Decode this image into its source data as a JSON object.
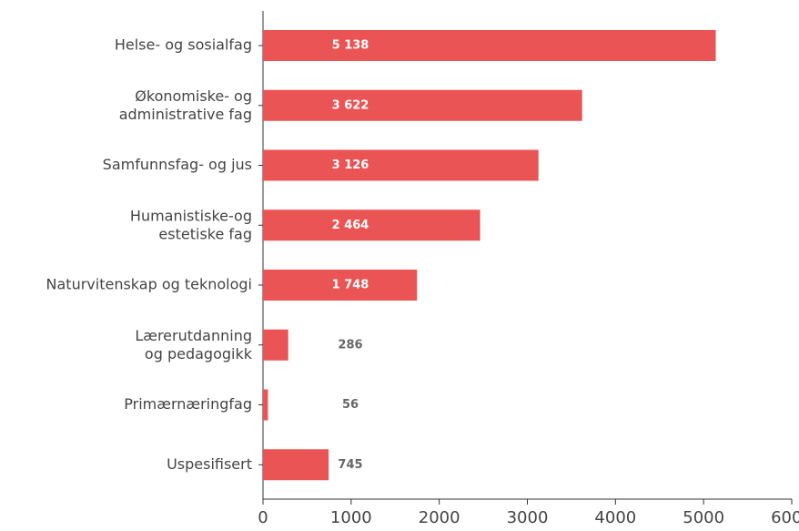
{
  "chart_data": {
    "type": "bar",
    "orientation": "horizontal",
    "categories": [
      "Helse- og sosialfag",
      "Økonomiske- og\nadministrative fag",
      "Samfunnsfag- og jus",
      "Humanistiske-og\nestetiske fag",
      "Naturvitenskap og teknologi",
      "Lærerutdanning\nog pedagogikk",
      "Primærnæringfag",
      "Uspesifisert"
    ],
    "values": [
      5138,
      3622,
      3126,
      2464,
      1748,
      286,
      56,
      745
    ],
    "value_labels": [
      "5 138",
      "3 622",
      "3 126",
      "2 464",
      "1 748",
      "286",
      "56",
      "745"
    ],
    "color": "#eb5454",
    "xlim": [
      0,
      6000
    ],
    "xticks": [
      0,
      1000,
      2000,
      3000,
      4000,
      5000,
      6000
    ]
  }
}
